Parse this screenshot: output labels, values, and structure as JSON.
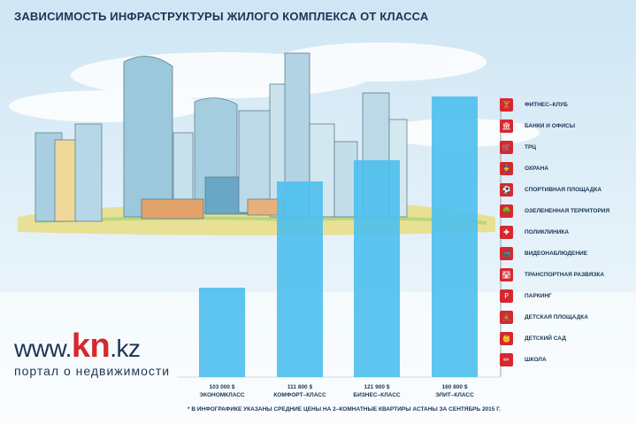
{
  "header": {
    "title": "ЗАВИСИМОСТЬ ИНФРАСТРУКТУРЫ ЖИЛОГО КОМПЛЕКСА ОТ КЛАССА"
  },
  "chart_data": {
    "type": "bar",
    "title": "ЗАВИСИМОСТЬ ИНФРАСТРУКТУРЫ ЖИЛОГО КОМПЛЕКСА ОТ КЛАССА",
    "categories": [
      "ЭКОНОМКЛАСС",
      "КОМФОРТ–КЛАСС",
      "БИЗНЕС–КЛАСС",
      "ЭЛИТ–КЛАСС"
    ],
    "value_labels": [
      "103 000 $",
      "111 800 $",
      "121 900 $",
      "160 800 $"
    ],
    "values": [
      4,
      9,
      10,
      13
    ],
    "value_meaning": "number of infrastructure items available (bar reaches the corresponding legend row)",
    "bar_color": "#4fc0ee",
    "legend_position": "right"
  },
  "legend": {
    "items": [
      {
        "label": "ФИТНЕС–КЛУБ",
        "icon": "fitness-icon"
      },
      {
        "label": "БАНКИ И ОФИСЫ",
        "icon": "bank-icon"
      },
      {
        "label": "ТРЦ",
        "icon": "mall-icon"
      },
      {
        "label": "ОХРАНА",
        "icon": "security-icon"
      },
      {
        "label": "СПОРТИВНАЯ ПЛОЩАДКА",
        "icon": "sports-ground-icon"
      },
      {
        "label": "ОЗЕЛЕНЕННАЯ ТЕРРИТОРИЯ",
        "icon": "tree-icon"
      },
      {
        "label": "ПОЛИКЛИНИКА",
        "icon": "clinic-icon"
      },
      {
        "label": "ВИДЕОНАБЛЮДЕНИЕ",
        "icon": "camera-icon"
      },
      {
        "label": "ТРАНСПОРТНАЯ РАЗВЯЗКА",
        "icon": "road-icon"
      },
      {
        "label": "ПАРКИНГ",
        "icon": "parking-icon"
      },
      {
        "label": "ДЕТСКАЯ ПЛОЩАДКА",
        "icon": "playground-icon"
      },
      {
        "label": "ДЕТСКИЙ САД",
        "icon": "kindergarten-icon"
      },
      {
        "label": "ШКОЛА",
        "icon": "school-icon"
      }
    ],
    "glyphs": [
      "🏋",
      "🏛",
      "🛒",
      "👮",
      "⚽",
      "🌳",
      "✚",
      "📹",
      "🛣",
      "P",
      "🧸",
      "👶",
      "✏"
    ]
  },
  "footnote": "* В ИНФОГРАФИКЕ УКАЗАНЫ СРЕДНИЕ ЦЕНЫ НА 2–КОМНАТНЫЕ КВАРТИРЫ АСТАНЫ ЗА СЕНТЯБРЬ 2015 Г.",
  "logo": {
    "prefix": "www.",
    "brand": "kn",
    "suffix": ".kz",
    "tagline": "портал о недвижимости"
  },
  "colors": {
    "accent": "#d7282f",
    "text": "#1a3553",
    "bar": "#4fc0ee",
    "sky": "#d8ecf7"
  }
}
